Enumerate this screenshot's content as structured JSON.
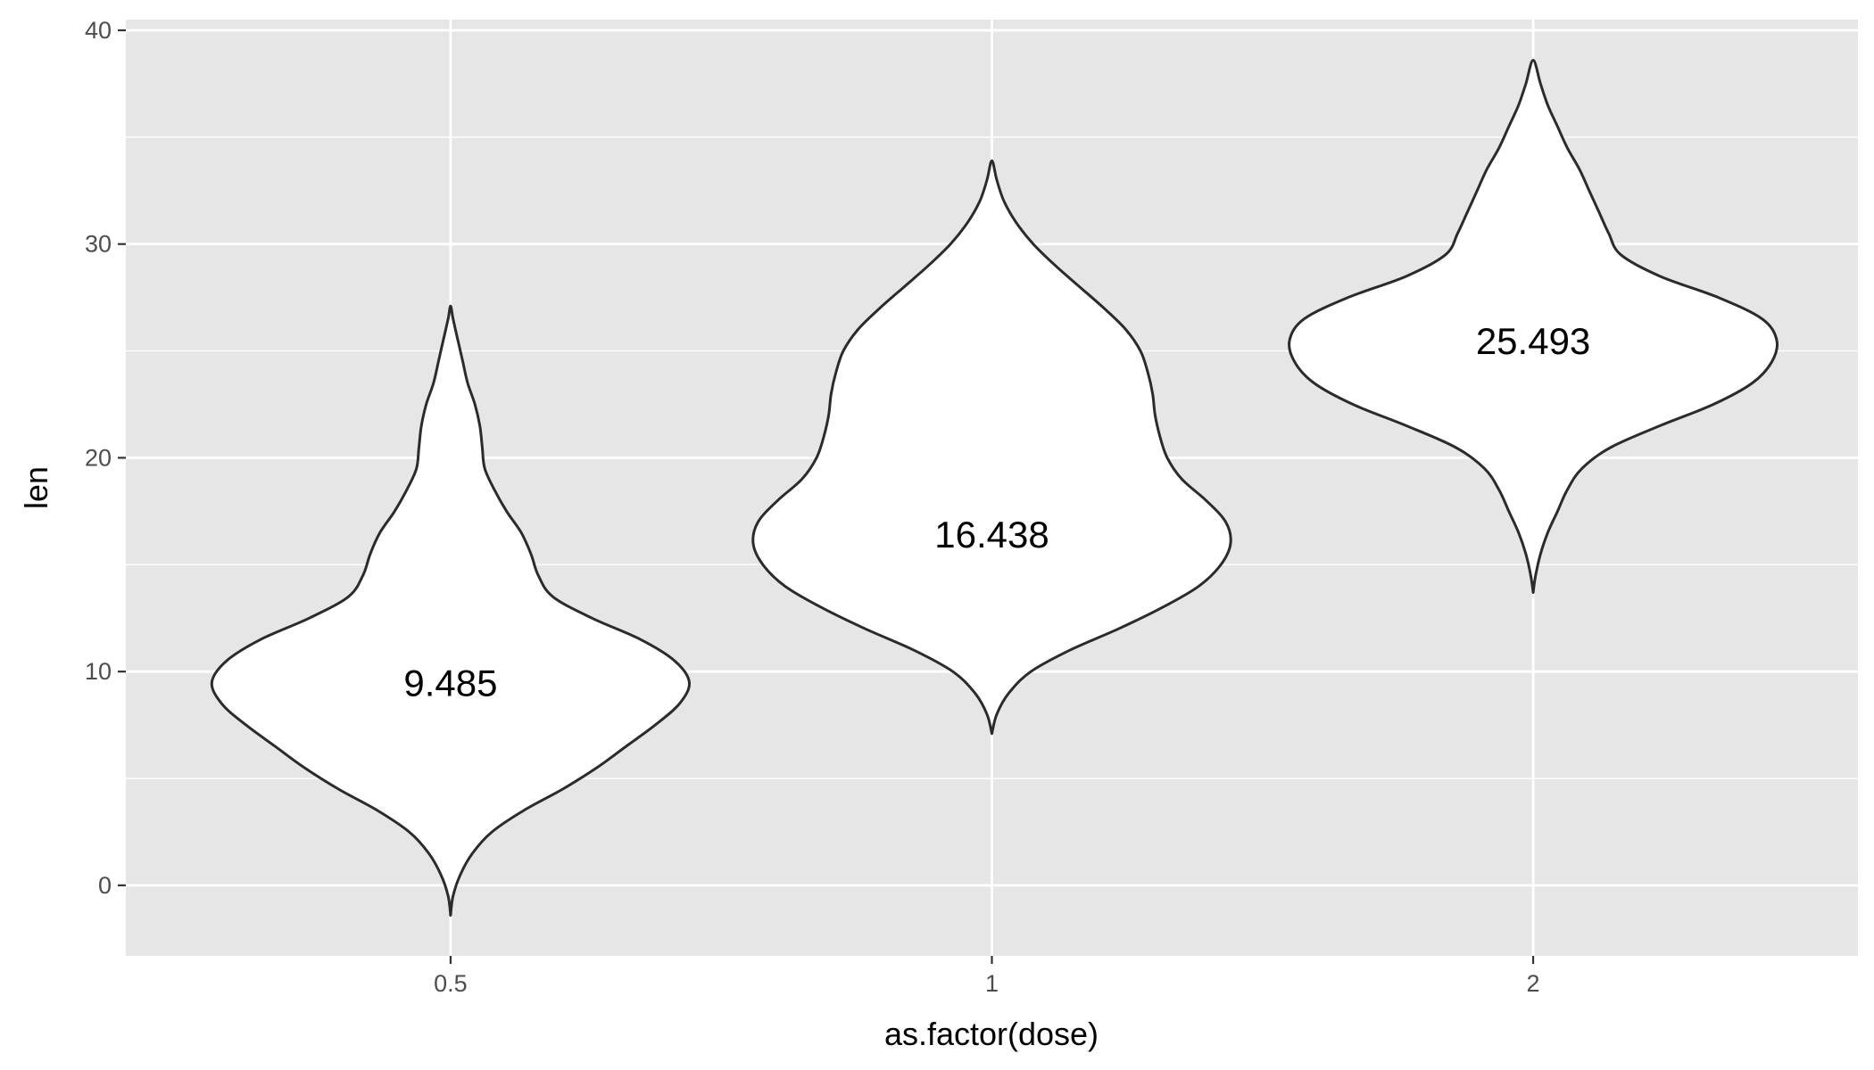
{
  "chart_data": {
    "type": "violin",
    "xlabel": "as.factor(dose)",
    "ylabel": "len",
    "ylim": [
      -3.3,
      40.5
    ],
    "y_ticks": [
      0,
      10,
      20,
      30,
      40
    ],
    "y_minor_ticks": [
      5,
      15,
      25,
      35
    ],
    "categories": [
      "0.5",
      "1",
      "2"
    ],
    "grid": true,
    "colors": {
      "panel": "#e6e6e6",
      "grid": "#ffffff",
      "violin_fill": "#ffffff",
      "violin_stroke": "#2b2b2b"
    },
    "violins": [
      {
        "category": "0.5",
        "label": "9.485",
        "label_y": 9.485,
        "profile": [
          [
            -1.4,
            0.0
          ],
          [
            -0.5,
            0.01
          ],
          [
            0.5,
            0.04
          ],
          [
            1.5,
            0.09
          ],
          [
            2.5,
            0.17
          ],
          [
            3.5,
            0.3
          ],
          [
            4.5,
            0.46
          ],
          [
            5.5,
            0.6
          ],
          [
            6.5,
            0.72
          ],
          [
            7.5,
            0.84
          ],
          [
            8.5,
            0.94
          ],
          [
            9.5,
            0.98
          ],
          [
            10.5,
            0.92
          ],
          [
            11.5,
            0.78
          ],
          [
            12.5,
            0.58
          ],
          [
            13.5,
            0.42
          ],
          [
            14.5,
            0.36
          ],
          [
            15.5,
            0.33
          ],
          [
            16.5,
            0.29
          ],
          [
            17.5,
            0.23
          ],
          [
            18.5,
            0.18
          ],
          [
            19.5,
            0.14
          ],
          [
            20.5,
            0.13
          ],
          [
            21.5,
            0.12
          ],
          [
            22.5,
            0.1
          ],
          [
            23.5,
            0.07
          ],
          [
            24.5,
            0.05
          ],
          [
            25.5,
            0.03
          ],
          [
            26.5,
            0.01
          ],
          [
            27.1,
            0.0
          ]
        ]
      },
      {
        "category": "1",
        "label": "16.438",
        "label_y": 16.438,
        "profile": [
          [
            7.1,
            0.0
          ],
          [
            8.0,
            0.02
          ],
          [
            9.0,
            0.07
          ],
          [
            10.0,
            0.16
          ],
          [
            11.0,
            0.32
          ],
          [
            12.0,
            0.52
          ],
          [
            13.0,
            0.7
          ],
          [
            14.0,
            0.85
          ],
          [
            15.0,
            0.94
          ],
          [
            16.0,
            0.98
          ],
          [
            17.0,
            0.96
          ],
          [
            18.0,
            0.88
          ],
          [
            19.0,
            0.78
          ],
          [
            20.0,
            0.72
          ],
          [
            21.0,
            0.69
          ],
          [
            22.0,
            0.67
          ],
          [
            23.0,
            0.66
          ],
          [
            24.0,
            0.64
          ],
          [
            25.0,
            0.61
          ],
          [
            26.0,
            0.55
          ],
          [
            27.0,
            0.46
          ],
          [
            28.0,
            0.36
          ],
          [
            29.0,
            0.26
          ],
          [
            30.0,
            0.17
          ],
          [
            31.0,
            0.1
          ],
          [
            32.0,
            0.05
          ],
          [
            33.0,
            0.02
          ],
          [
            33.9,
            0.0
          ]
        ]
      },
      {
        "category": "2",
        "label": "25.493",
        "label_y": 25.493,
        "profile": [
          [
            13.7,
            0.0
          ],
          [
            14.5,
            0.01
          ],
          [
            15.5,
            0.03
          ],
          [
            16.5,
            0.06
          ],
          [
            17.5,
            0.1
          ],
          [
            18.5,
            0.14
          ],
          [
            19.5,
            0.2
          ],
          [
            20.5,
            0.32
          ],
          [
            21.5,
            0.52
          ],
          [
            22.5,
            0.74
          ],
          [
            23.5,
            0.9
          ],
          [
            24.5,
            0.98
          ],
          [
            25.5,
            1.0
          ],
          [
            26.5,
            0.94
          ],
          [
            27.5,
            0.76
          ],
          [
            28.5,
            0.52
          ],
          [
            29.5,
            0.36
          ],
          [
            30.5,
            0.31
          ],
          [
            31.5,
            0.27
          ],
          [
            32.5,
            0.23
          ],
          [
            33.5,
            0.19
          ],
          [
            34.5,
            0.14
          ],
          [
            35.5,
            0.1
          ],
          [
            36.5,
            0.06
          ],
          [
            37.5,
            0.03
          ],
          [
            38.6,
            0.0
          ]
        ]
      }
    ]
  }
}
